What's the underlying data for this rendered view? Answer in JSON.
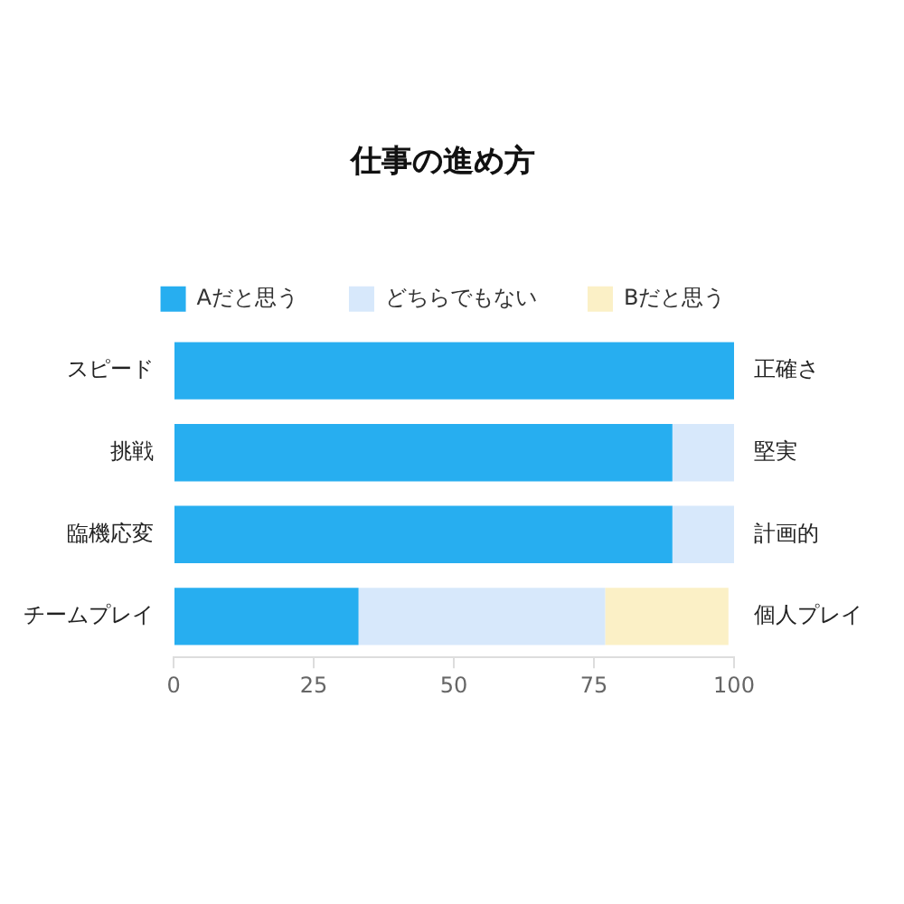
{
  "chart_data": {
    "type": "bar",
    "orientation": "horizontal",
    "stacked": true,
    "title": "仕事の進め方",
    "categories": [
      "スピード",
      "挑戦",
      "臨機応変",
      "チームプレイ"
    ],
    "y2_categories": [
      "正確さ",
      "堅実",
      "計画的",
      "個人プレイ"
    ],
    "series": [
      {
        "name": "Aだと思う",
        "color": "#27aef0",
        "values": [
          100,
          89,
          89,
          33
        ]
      },
      {
        "name": "どちらでもない",
        "color": "#d7e8fb",
        "values": [
          0,
          11,
          11,
          44
        ]
      },
      {
        "name": "Bだと思う",
        "color": "#fbf0c6",
        "values": [
          0,
          0,
          0,
          22
        ]
      }
    ],
    "xlim": [
      0,
      100
    ],
    "xticks": [
      0,
      25,
      50,
      75,
      100
    ],
    "grid": false,
    "legend": "top"
  }
}
